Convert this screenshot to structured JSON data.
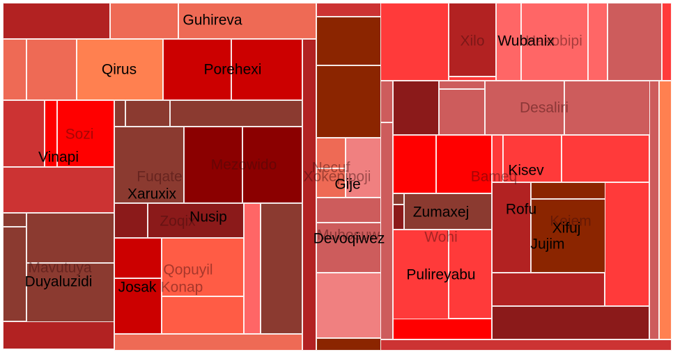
{
  "chart_data": {
    "type": "treemap",
    "title": "",
    "colors": {
      "light_red": "#ee6a55",
      "orange": "#ff8050",
      "bright_red": "#ff0000",
      "red": "#cc0000",
      "crimson": "#ff3a3a",
      "brick": "#cc3333",
      "dark_red": "#8b0000",
      "maroon": "#8b1a1a",
      "brown_red": "#8b3a30",
      "rust": "#8b2500",
      "pink": "#f08080",
      "salmon": "#ff6666",
      "indian_red": "#cd5c5c",
      "tomato": "#ff5c45",
      "firebrick": "#b22222"
    },
    "labels": [
      "Guhireva",
      "Qirus",
      "Porehexi",
      "Sozi",
      "Vinapi",
      "Fuqate",
      "Mezowido",
      "Xaruxix",
      "Nusip",
      "Zoqix",
      "Qopuyil",
      "Konap",
      "Josak",
      "Mavutuya",
      "Duyaluzidi",
      "Necuf",
      "Xokepipoji",
      "Gije",
      "Muhosuw",
      "Devoqiwez",
      "Xilo",
      "Wubanix",
      "Hakobipi",
      "Desaliri",
      "Bameq",
      "Kisev",
      "Zumaxej",
      "Wohi",
      "Rofu",
      "Kejem",
      "Xifuj",
      "Jujim",
      "Pulireyabu"
    ]
  }
}
